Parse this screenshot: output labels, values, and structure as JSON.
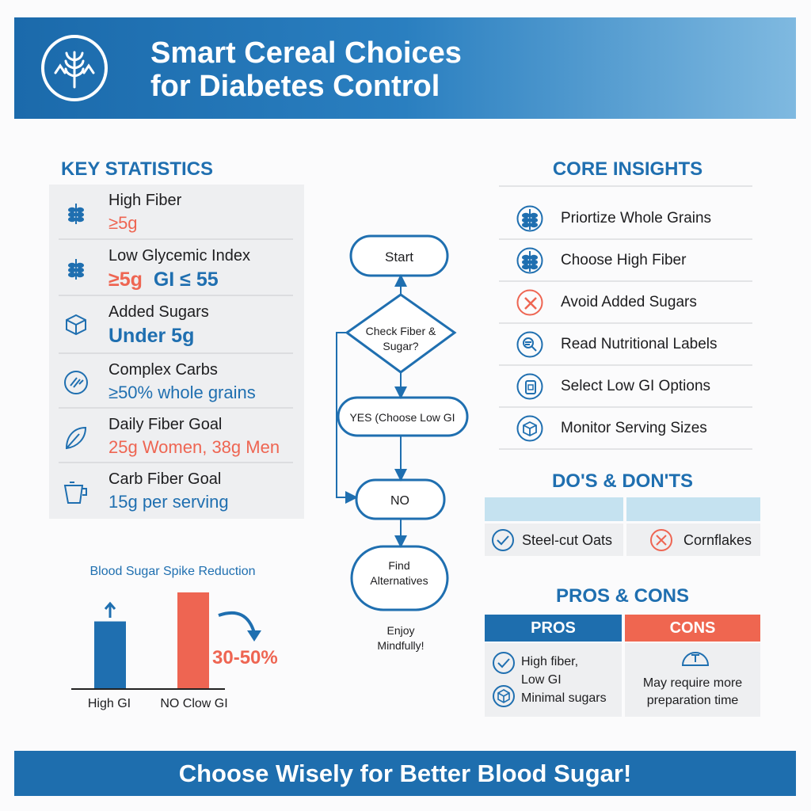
{
  "header": {
    "title_line1": "Smart Cereal Choices",
    "title_line2": "for Diabetes Control",
    "logo_icon": "wheat-icon"
  },
  "key_statistics": {
    "heading": "KEY STATISTICS",
    "items": [
      {
        "label": "High Fiber",
        "value": "≥5g",
        "icon": "wheat-icon",
        "color": "#ee6552"
      },
      {
        "label": "Low Glycemic Index",
        "value": "≥5g",
        "value2": "GI ≤ 55",
        "icon": "wheat-icon"
      },
      {
        "label": "Added Sugars",
        "value": "Under 5g",
        "icon": "sugar-cube-icon",
        "color": "#1f6fb0"
      },
      {
        "label": "Complex Carbs",
        "value": "≥50% whole grains",
        "icon": "grains-icon",
        "color": "#1f6fb0"
      },
      {
        "label": "Daily Fiber Goal",
        "value": "25g Women, 38g Men",
        "icon": "leaf-icon",
        "color": "#ee6552"
      },
      {
        "label": "Carb Fiber Goal",
        "value": "15g per serving",
        "icon": "measuring-cup-icon",
        "color": "#1f6fb0"
      }
    ]
  },
  "flowchart": {
    "start": "Start",
    "decision_line1": "Check Fiber &",
    "decision_line2": "Sugar?",
    "yes": "YES (Choose Low GI",
    "no": "NO",
    "find_line1": "Find",
    "find_line2": "Alternatives",
    "end_line1": "Enjoy",
    "end_line2": "Mindfully!"
  },
  "chart_data": {
    "type": "bar",
    "title": "Blood Sugar Spike Reduction",
    "categories": [
      "High GI",
      "NO Clow GI"
    ],
    "values": [
      70,
      100
    ],
    "colors": [
      "#1f6fb0",
      "#ee6552"
    ],
    "annotation": "30-50%",
    "xlabel": "",
    "ylabel": ""
  },
  "core_insights": {
    "heading": "CORE INSIGHTS",
    "items": [
      {
        "label": "Priortize Whole Grains",
        "icon": "wheat-icon"
      },
      {
        "label": "Choose High Fiber",
        "icon": "wheat-icon"
      },
      {
        "label": "Avoid Added Sugars",
        "icon": "x-circle-icon"
      },
      {
        "label": "Read Nutritional Labels",
        "icon": "magnifier-icon"
      },
      {
        "label": "Select Low GI Options",
        "icon": "label-icon"
      },
      {
        "label": "Monitor Serving Sizes",
        "icon": "cube-icon"
      }
    ]
  },
  "dos_donts": {
    "heading": "DO'S & DON'TS",
    "do": "Steel-cut Oats",
    "dont": "Cornflakes"
  },
  "pros_cons": {
    "heading": "PROS & CONS",
    "pros_label": "PROS",
    "cons_label": "CONS",
    "pros_line1": "High fiber,",
    "pros_line2": "Low GI",
    "pros_line3": "Minimal sugars",
    "cons_line1": "May require more",
    "cons_line2": "preparation time"
  },
  "footer": {
    "text": "Choose Wisely for Better Blood Sugar!"
  },
  "colors": {
    "primary": "#1f6fb0",
    "accent": "#ee6552",
    "light": "#c5e2f0"
  }
}
